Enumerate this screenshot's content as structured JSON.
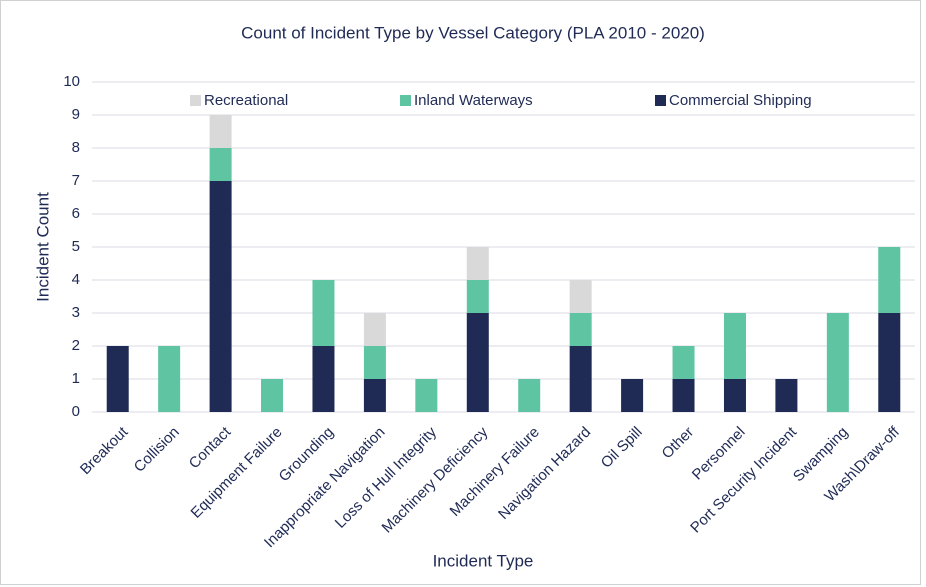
{
  "chart_data": {
    "type": "stacked_bar",
    "title": "Count of Incident Type by Vessel Category (PLA 2010 - 2020)",
    "x_label": "Incident Type",
    "y_label": "Incident Count",
    "categories": [
      "Breakout",
      "Collision",
      "Contact",
      "Equipment Failure",
      "Grounding",
      "Inappropriate Navigation",
      "Loss of Hull Integrity",
      "Machinery Deficiency",
      "Machinery Failure",
      "Navigation Hazard",
      "Oil Spill",
      "Other",
      "Personnel",
      "Port Security Incident",
      "Swamping",
      "Wash\\Draw-off"
    ],
    "series": [
      {
        "name": "Commercial Shipping",
        "color": "#1f2a55",
        "values": [
          2,
          0,
          7,
          0,
          2,
          1,
          0,
          3,
          0,
          2,
          1,
          1,
          1,
          1,
          0,
          3
        ]
      },
      {
        "name": "Inland Waterways",
        "color": "#5ec4a2",
        "values": [
          0,
          2,
          1,
          1,
          2,
          1,
          1,
          1,
          1,
          1,
          0,
          1,
          2,
          0,
          3,
          2
        ]
      },
      {
        "name": "Recreational",
        "color": "#d9d9d9",
        "values": [
          0,
          0,
          1,
          0,
          0,
          1,
          0,
          1,
          0,
          1,
          0,
          0,
          0,
          0,
          0,
          0
        ]
      }
    ],
    "ylim": [
      0,
      10
    ],
    "yticks": [
      0,
      1,
      2,
      3,
      4,
      5,
      6,
      7,
      8,
      9,
      10
    ],
    "grid": true,
    "legend": "top"
  }
}
